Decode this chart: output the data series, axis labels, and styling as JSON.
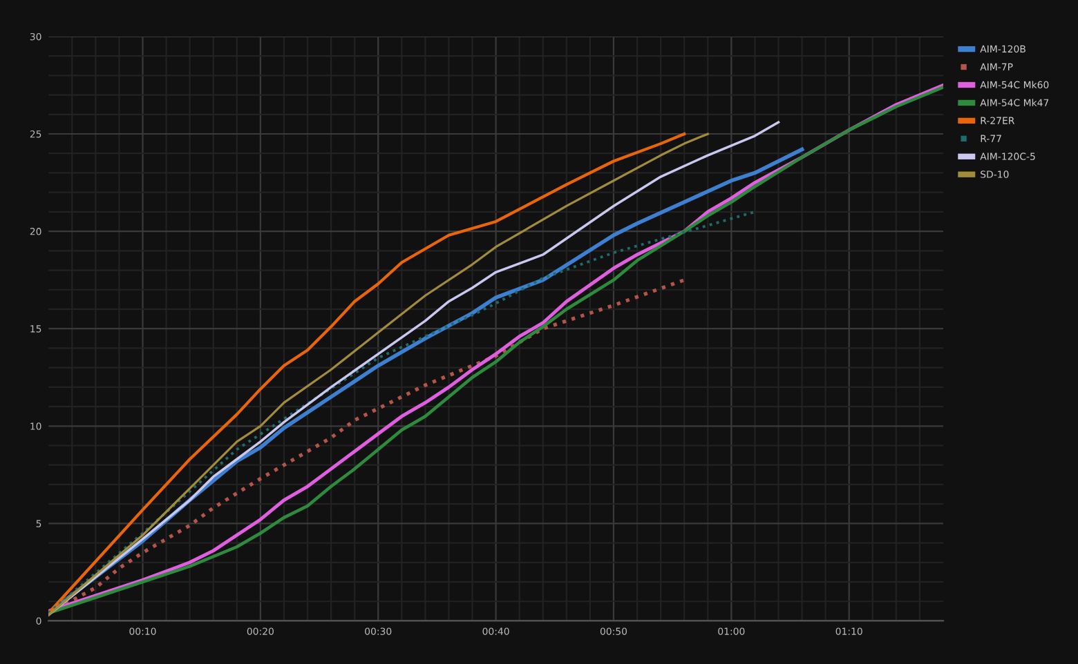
{
  "chart_data": {
    "type": "line",
    "xlim": [
      2,
      78
    ],
    "ylim": [
      0,
      30
    ],
    "xticks": [
      {
        "value": 4,
        "label": null
      },
      {
        "value": 6,
        "label": null
      },
      {
        "value": 8,
        "label": null
      },
      {
        "value": 10,
        "label": "00:10"
      },
      {
        "value": 12,
        "label": null
      },
      {
        "value": 14,
        "label": null
      },
      {
        "value": 16,
        "label": null
      },
      {
        "value": 18,
        "label": null
      },
      {
        "value": 20,
        "label": "00:20"
      },
      {
        "value": 22,
        "label": null
      },
      {
        "value": 24,
        "label": null
      },
      {
        "value": 26,
        "label": null
      },
      {
        "value": 28,
        "label": null
      },
      {
        "value": 30,
        "label": "00:30"
      },
      {
        "value": 32,
        "label": null
      },
      {
        "value": 34,
        "label": null
      },
      {
        "value": 36,
        "label": null
      },
      {
        "value": 38,
        "label": null
      },
      {
        "value": 40,
        "label": "00:40"
      },
      {
        "value": 42,
        "label": null
      },
      {
        "value": 44,
        "label": null
      },
      {
        "value": 46,
        "label": null
      },
      {
        "value": 48,
        "label": null
      },
      {
        "value": 50,
        "label": "00:50"
      },
      {
        "value": 52,
        "label": null
      },
      {
        "value": 54,
        "label": null
      },
      {
        "value": 56,
        "label": null
      },
      {
        "value": 58,
        "label": null
      },
      {
        "value": 60,
        "label": "01:00"
      },
      {
        "value": 62,
        "label": null
      },
      {
        "value": 64,
        "label": null
      },
      {
        "value": 66,
        "label": null
      },
      {
        "value": 68,
        "label": null
      },
      {
        "value": 70,
        "label": "01:10"
      },
      {
        "value": 72,
        "label": null
      },
      {
        "value": 74,
        "label": null
      },
      {
        "value": 76,
        "label": null
      }
    ],
    "yticks": [
      0,
      {
        "value": 1,
        "label": null
      },
      {
        "value": 2,
        "label": null
      },
      {
        "value": 3,
        "label": null
      },
      {
        "value": 4,
        "label": null
      },
      5,
      {
        "value": 6,
        "label": null
      },
      {
        "value": 7,
        "label": null
      },
      {
        "value": 8,
        "label": null
      },
      {
        "value": 9,
        "label": null
      },
      10,
      {
        "value": 11,
        "label": null
      },
      {
        "value": 12,
        "label": null
      },
      {
        "value": 13,
        "label": null
      },
      {
        "value": 14,
        "label": null
      },
      15,
      {
        "value": 16,
        "label": null
      },
      {
        "value": 17,
        "label": null
      },
      {
        "value": 18,
        "label": null
      },
      {
        "value": 19,
        "label": null
      },
      20,
      {
        "value": 21,
        "label": null
      },
      {
        "value": 22,
        "label": null
      },
      {
        "value": 23,
        "label": null
      },
      {
        "value": 24,
        "label": null
      },
      25,
      {
        "value": 26,
        "label": null
      },
      {
        "value": 27,
        "label": null
      },
      {
        "value": 28,
        "label": null
      },
      {
        "value": 29,
        "label": null
      },
      30
    ],
    "grid": true,
    "legend": "top right",
    "marker": "none",
    "series": [
      {
        "name": "AIM-120B",
        "color": "#3d7fd0",
        "line_style": "solid",
        "x": [
          2,
          10,
          14,
          16,
          18,
          20,
          22,
          26,
          30,
          34,
          38,
          40,
          44,
          50,
          52,
          56,
          60,
          62,
          66
        ],
        "values": [
          0.4,
          4.1,
          6.2,
          7.2,
          8.2,
          8.9,
          9.9,
          11.5,
          13.1,
          14.5,
          15.8,
          16.6,
          17.5,
          19.8,
          20.4,
          21.5,
          22.6,
          23.0,
          24.2
        ]
      },
      {
        "name": "AIM-7P",
        "color": "#b5544a",
        "line_style": "dotted",
        "x": [
          2,
          6,
          8,
          10,
          14,
          16,
          20,
          22,
          26,
          28,
          30,
          34,
          38,
          40,
          44,
          50,
          56
        ],
        "values": [
          0.4,
          1.7,
          2.7,
          3.5,
          4.9,
          5.8,
          7.3,
          8.0,
          9.4,
          10.3,
          10.9,
          12.1,
          13.1,
          13.6,
          15.0,
          16.2,
          17.5
        ]
      },
      {
        "name": "AIM-54C Mk60",
        "color": "#e05fe0",
        "line_style": "solid",
        "x": [
          2,
          10,
          14,
          16,
          18,
          20,
          22,
          24,
          26,
          28,
          30,
          32,
          34,
          36,
          38,
          40,
          42,
          44,
          46,
          50,
          52,
          56,
          58,
          60,
          62,
          66,
          70,
          74,
          78
        ],
        "values": [
          0.5,
          2.1,
          3.0,
          3.6,
          4.4,
          5.2,
          6.2,
          6.9,
          7.8,
          8.7,
          9.6,
          10.5,
          11.2,
          12.0,
          12.9,
          13.7,
          14.6,
          15.3,
          16.4,
          18.1,
          18.8,
          20.0,
          21.0,
          21.7,
          22.5,
          23.8,
          25.2,
          26.5,
          27.5
        ]
      },
      {
        "name": "AIM-54C Mk47",
        "color": "#2e8b3e",
        "line_style": "solid",
        "x": [
          2,
          10,
          14,
          18,
          20,
          22,
          24,
          26,
          28,
          30,
          32,
          34,
          36,
          38,
          40,
          42,
          44,
          46,
          50,
          52,
          56,
          58,
          60,
          62,
          66,
          70,
          74,
          78
        ],
        "values": [
          0.4,
          2.0,
          2.8,
          3.8,
          4.5,
          5.3,
          5.9,
          6.9,
          7.8,
          8.8,
          9.8,
          10.5,
          11.5,
          12.5,
          13.3,
          14.3,
          15.1,
          16.0,
          17.5,
          18.5,
          20.0,
          20.8,
          21.5,
          22.3,
          23.8,
          25.2,
          26.4,
          27.4
        ]
      },
      {
        "name": "R-27ER",
        "color": "#e8650a",
        "line_style": "solid",
        "x": [
          2,
          10,
          14,
          18,
          20,
          22,
          24,
          26,
          28,
          30,
          32,
          34,
          36,
          40,
          46,
          50,
          54,
          56
        ],
        "values": [
          0.4,
          5.7,
          8.3,
          10.6,
          11.9,
          13.1,
          13.9,
          15.1,
          16.4,
          17.3,
          18.4,
          19.1,
          19.8,
          20.5,
          22.4,
          23.6,
          24.5,
          25.0
        ]
      },
      {
        "name": "R-77",
        "color": "#1e6b6b",
        "line_style": "dotted",
        "x": [
          2,
          10,
          18,
          30,
          34,
          38,
          40,
          44,
          50,
          54,
          58,
          62
        ],
        "values": [
          0.4,
          4.5,
          8.8,
          13.5,
          14.6,
          15.7,
          16.3,
          17.6,
          18.9,
          19.6,
          20.3,
          21.0
        ]
      },
      {
        "name": "AIM-120C-5",
        "color": "#c8c8f0",
        "line_style": "solid",
        "x": [
          2,
          10,
          14,
          16,
          18,
          20,
          22,
          26,
          30,
          34,
          36,
          38,
          40,
          44,
          50,
          54,
          58,
          62,
          64
        ],
        "values": [
          0.3,
          4.2,
          6.2,
          7.4,
          8.3,
          9.2,
          10.2,
          12.0,
          13.7,
          15.4,
          16.4,
          17.1,
          17.9,
          18.8,
          21.3,
          22.8,
          23.9,
          24.9,
          25.6
        ]
      },
      {
        "name": "SD-10",
        "color": "#a08c3a",
        "line_style": "solid",
        "x": [
          2,
          10,
          14,
          18,
          20,
          22,
          26,
          30,
          34,
          38,
          40,
          46,
          50,
          54,
          56,
          58
        ],
        "values": [
          0.3,
          4.4,
          6.8,
          9.2,
          10.0,
          11.2,
          12.9,
          14.8,
          16.7,
          18.3,
          19.2,
          21.3,
          22.6,
          23.9,
          24.5,
          25.0
        ]
      }
    ]
  }
}
